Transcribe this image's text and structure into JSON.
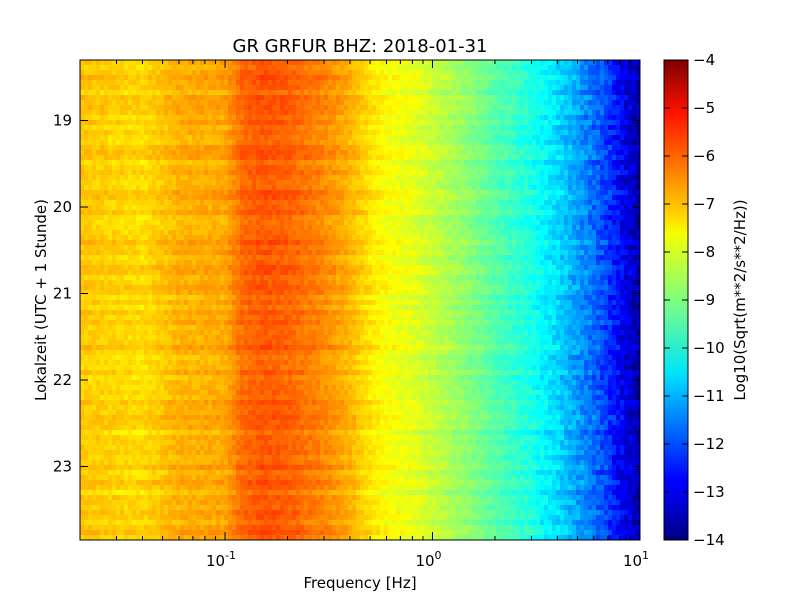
{
  "chart_data": {
    "type": "heatmap",
    "title": "GR GRFUR BHZ: 2018-01-31",
    "xlabel": "Frequency [Hz]",
    "ylabel": "Lokalzeit (UTC + 1 Stunde)",
    "x_scale": "log",
    "xlim": [
      0.02,
      10
    ],
    "x_ticks": [
      {
        "value": 0.1,
        "base": "10",
        "exp": "-1"
      },
      {
        "value": 1,
        "base": "10",
        "exp": "0"
      },
      {
        "value": 10,
        "base": "10",
        "exp": "1"
      }
    ],
    "ylim": [
      18.3,
      23.85
    ],
    "y_inverted": true,
    "y_ticks": [
      "19",
      "20",
      "21",
      "22",
      "23"
    ],
    "colorbar": {
      "label": "Log10(Sqrt(m**2/s**2/Hz))",
      "colormap": "jet",
      "range": [
        -14,
        -4
      ],
      "ticks": [
        "-4",
        "-5",
        "-6",
        "-7",
        "-8",
        "-9",
        "-10",
        "-11",
        "-12",
        "-13",
        "-14"
      ]
    },
    "spectrum_profile": {
      "description_values_are_log10_asd_vs_frequency_hz": true,
      "frequency_hz": [
        0.02,
        0.04,
        0.06,
        0.1,
        0.12,
        0.15,
        0.2,
        0.3,
        0.4,
        0.5,
        0.6,
        0.8,
        1.0,
        1.5,
        2,
        3,
        4,
        5,
        6,
        7,
        8,
        9,
        10
      ],
      "value": [
        -7.2,
        -7.4,
        -7.0,
        -6.9,
        -6.3,
        -6.1,
        -6.2,
        -6.6,
        -7.0,
        -7.5,
        -7.8,
        -8.0,
        -8.3,
        -8.9,
        -9.4,
        -10.0,
        -10.6,
        -11.2,
        -11.7,
        -12.2,
        -12.8,
        -13.2,
        -13.6
      ]
    },
    "time_range_hours": [
      18.3,
      23.85
    ]
  }
}
